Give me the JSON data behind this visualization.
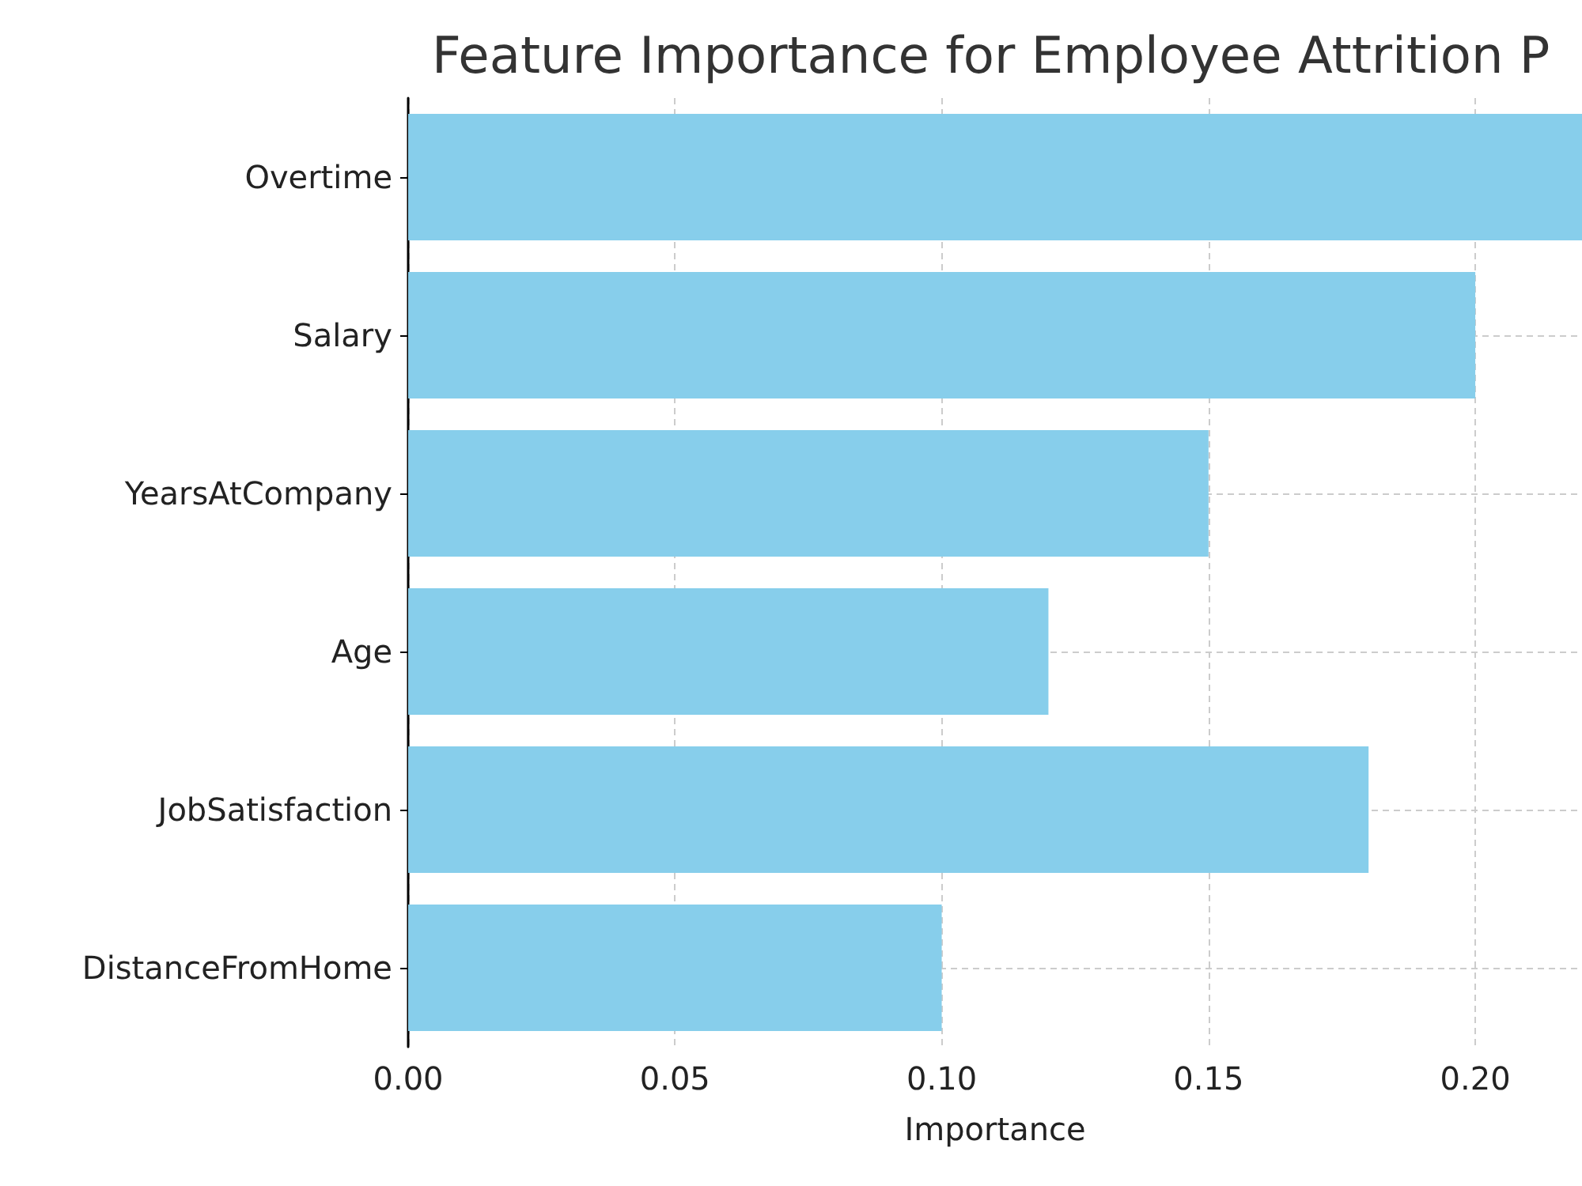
{
  "chart_data": {
    "type": "bar",
    "orientation": "horizontal",
    "title": "Feature Importance for Employee Attrition P",
    "xlabel": "Importance",
    "categories": [
      "Overtime",
      "Salary",
      "YearsAtCompany",
      "Age",
      "JobSatisfaction",
      "DistanceFromHome"
    ],
    "values": [
      0.22,
      0.2,
      0.15,
      0.12,
      0.18,
      0.1
    ],
    "color": "#87ceeb",
    "xlim": [
      0,
      0.22
    ],
    "xticks": [
      {
        "value": 0,
        "label": "0.00"
      },
      {
        "value": 0.05,
        "label": "0.05"
      },
      {
        "value": 0.1,
        "label": "0.10"
      },
      {
        "value": 0.15,
        "label": "0.15"
      },
      {
        "value": 0.2,
        "label": "0.20"
      }
    ],
    "grid": true
  }
}
